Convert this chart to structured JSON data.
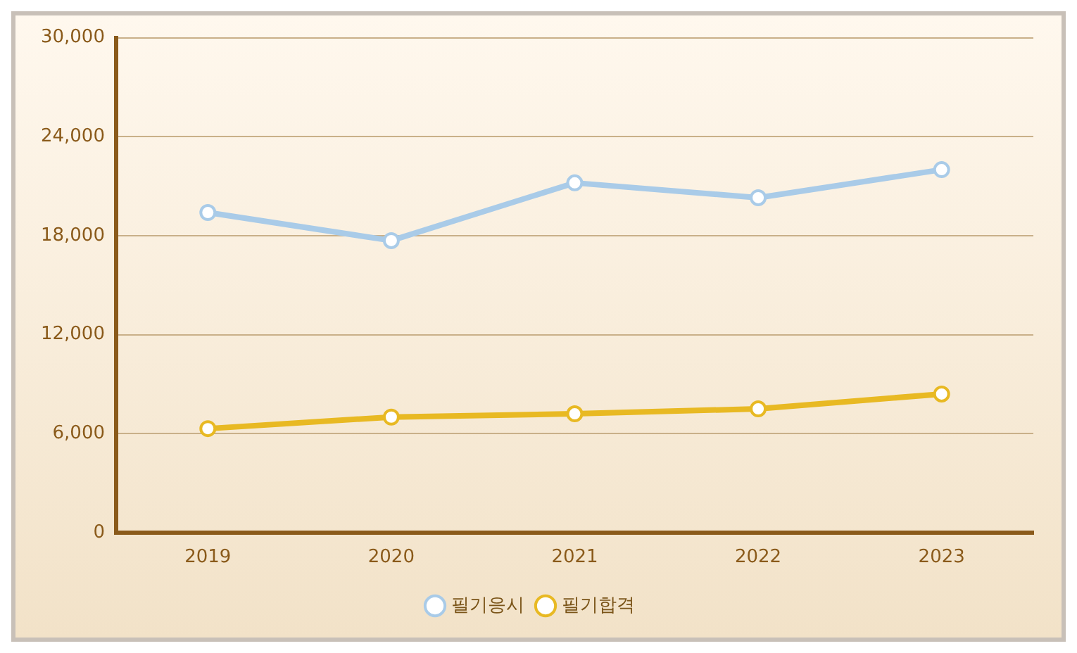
{
  "chart_data": {
    "type": "line",
    "categories": [
      "2019",
      "2020",
      "2021",
      "2022",
      "2023"
    ],
    "series": [
      {
        "name": "필기응시",
        "color": "#a9cbe8",
        "values": [
          19400,
          17700,
          21200,
          20300,
          22000
        ]
      },
      {
        "name": "필기합격",
        "color": "#e8b923",
        "values": [
          6300,
          7000,
          7200,
          7500,
          8400
        ]
      }
    ],
    "ylim": [
      0,
      30000
    ],
    "yticks": [
      {
        "value": 0,
        "label": "0"
      },
      {
        "value": 6000,
        "label": "6,000"
      },
      {
        "value": 12000,
        "label": "12,000"
      },
      {
        "value": 18000,
        "label": "18,000"
      },
      {
        "value": 24000,
        "label": "24,000"
      },
      {
        "value": 30000,
        "label": "30,000"
      }
    ],
    "grid": "y",
    "legend": "bottom",
    "marker": "circle",
    "line_style": "solid"
  }
}
